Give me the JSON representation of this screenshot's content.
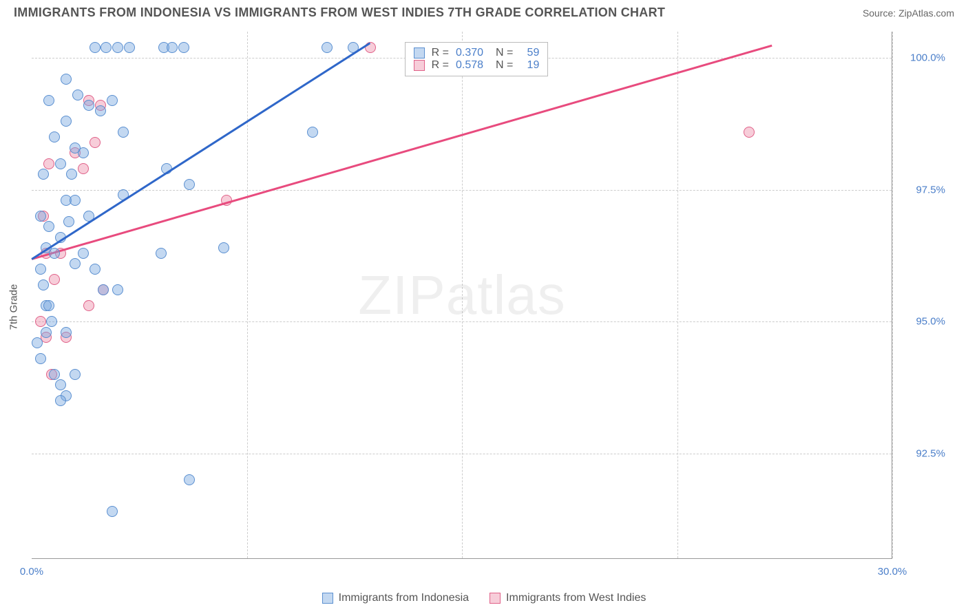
{
  "title": "IMMIGRANTS FROM INDONESIA VS IMMIGRANTS FROM WEST INDIES 7TH GRADE CORRELATION CHART",
  "source_label": "Source: ZipAtlas.com",
  "y_axis_label": "7th Grade",
  "watermark_a": "ZIP",
  "watermark_b": "atlas",
  "chart": {
    "type": "scatter",
    "xlim": [
      0,
      30
    ],
    "ylim": [
      90.5,
      100.5
    ],
    "x_ticks": [
      {
        "v": 0,
        "l": "0.0%"
      },
      {
        "v": 30,
        "l": "30.0%"
      }
    ],
    "y_ticks": [
      {
        "v": 92.5,
        "l": "92.5%"
      },
      {
        "v": 95.0,
        "l": "95.0%"
      },
      {
        "v": 97.5,
        "l": "97.5%"
      },
      {
        "v": 100.0,
        "l": "100.0%"
      }
    ],
    "x_grid": [
      7.5,
      15,
      22.5,
      30
    ],
    "grid_color": "#cccccc",
    "background_color": "#ffffff",
    "series": {
      "indonesia": {
        "label": "Immigrants from Indonesia",
        "fill_color": "rgba(122,168,224,0.45)",
        "stroke_color": "#5a8fd0",
        "trend_color": "#2f67c9",
        "marker_radius": 8,
        "R": "0.370",
        "N": "59",
        "trend": {
          "x1": 0,
          "y1": 96.2,
          "x2": 11.8,
          "y2": 100.3
        },
        "points": [
          [
            0.3,
            96.0
          ],
          [
            0.4,
            95.7
          ],
          [
            0.5,
            96.4
          ],
          [
            0.5,
            95.3
          ],
          [
            0.6,
            95.3
          ],
          [
            0.5,
            94.8
          ],
          [
            0.7,
            95.0
          ],
          [
            0.2,
            94.6
          ],
          [
            0.3,
            94.3
          ],
          [
            0.8,
            94.0
          ],
          [
            1.0,
            93.8
          ],
          [
            1.2,
            93.6
          ],
          [
            1.5,
            94.0
          ],
          [
            1.0,
            93.5
          ],
          [
            1.2,
            94.8
          ],
          [
            0.8,
            96.3
          ],
          [
            1.0,
            96.6
          ],
          [
            1.3,
            96.9
          ],
          [
            1.5,
            96.1
          ],
          [
            1.8,
            96.3
          ],
          [
            0.3,
            97.0
          ],
          [
            0.6,
            96.8
          ],
          [
            1.2,
            97.3
          ],
          [
            1.5,
            97.3
          ],
          [
            2.0,
            97.0
          ],
          [
            4.5,
            96.3
          ],
          [
            3.0,
            95.6
          ],
          [
            6.7,
            96.4
          ],
          [
            2.2,
            96.0
          ],
          [
            0.4,
            97.8
          ],
          [
            1.0,
            98.0
          ],
          [
            1.4,
            97.8
          ],
          [
            1.8,
            98.2
          ],
          [
            4.7,
            97.9
          ],
          [
            5.5,
            97.6
          ],
          [
            0.8,
            98.5
          ],
          [
            1.2,
            98.8
          ],
          [
            1.5,
            98.3
          ],
          [
            3.2,
            98.6
          ],
          [
            2.8,
            99.2
          ],
          [
            0.6,
            99.2
          ],
          [
            1.6,
            99.3
          ],
          [
            2.0,
            99.1
          ],
          [
            2.4,
            99.0
          ],
          [
            9.8,
            98.6
          ],
          [
            2.2,
            100.2
          ],
          [
            2.6,
            100.2
          ],
          [
            3.0,
            100.2
          ],
          [
            3.4,
            100.2
          ],
          [
            4.6,
            100.2
          ],
          [
            4.9,
            100.2
          ],
          [
            5.3,
            100.2
          ],
          [
            10.3,
            100.2
          ],
          [
            11.2,
            100.2
          ],
          [
            5.5,
            92.0
          ],
          [
            2.8,
            91.4
          ],
          [
            1.2,
            99.6
          ],
          [
            2.5,
            95.6
          ],
          [
            3.2,
            97.4
          ]
        ]
      },
      "west_indies": {
        "label": "Immigrants from West Indies",
        "fill_color": "rgba(235,130,160,0.40)",
        "stroke_color": "#e06088",
        "trend_color": "#e84b7e",
        "marker_radius": 8,
        "R": "0.578",
        "N": "19",
        "trend": {
          "x1": 0,
          "y1": 96.2,
          "x2": 25.8,
          "y2": 100.25
        },
        "points": [
          [
            0.5,
            94.7
          ],
          [
            0.7,
            94.0
          ],
          [
            1.2,
            94.7
          ],
          [
            2.0,
            95.3
          ],
          [
            0.3,
            95.0
          ],
          [
            0.8,
            95.8
          ],
          [
            2.5,
            95.6
          ],
          [
            0.5,
            96.3
          ],
          [
            1.0,
            96.3
          ],
          [
            0.4,
            97.0
          ],
          [
            0.6,
            98.0
          ],
          [
            1.5,
            98.2
          ],
          [
            1.8,
            97.9
          ],
          [
            2.2,
            98.4
          ],
          [
            6.8,
            97.3
          ],
          [
            2.0,
            99.2
          ],
          [
            2.4,
            99.1
          ],
          [
            25.0,
            98.6
          ],
          [
            11.8,
            100.2
          ]
        ]
      }
    }
  },
  "legend_top": {
    "rows": [
      {
        "series": "indonesia",
        "R_label": "R =",
        "N_label": "N ="
      },
      {
        "series": "west_indies",
        "R_label": "R =",
        "N_label": "N ="
      }
    ]
  }
}
